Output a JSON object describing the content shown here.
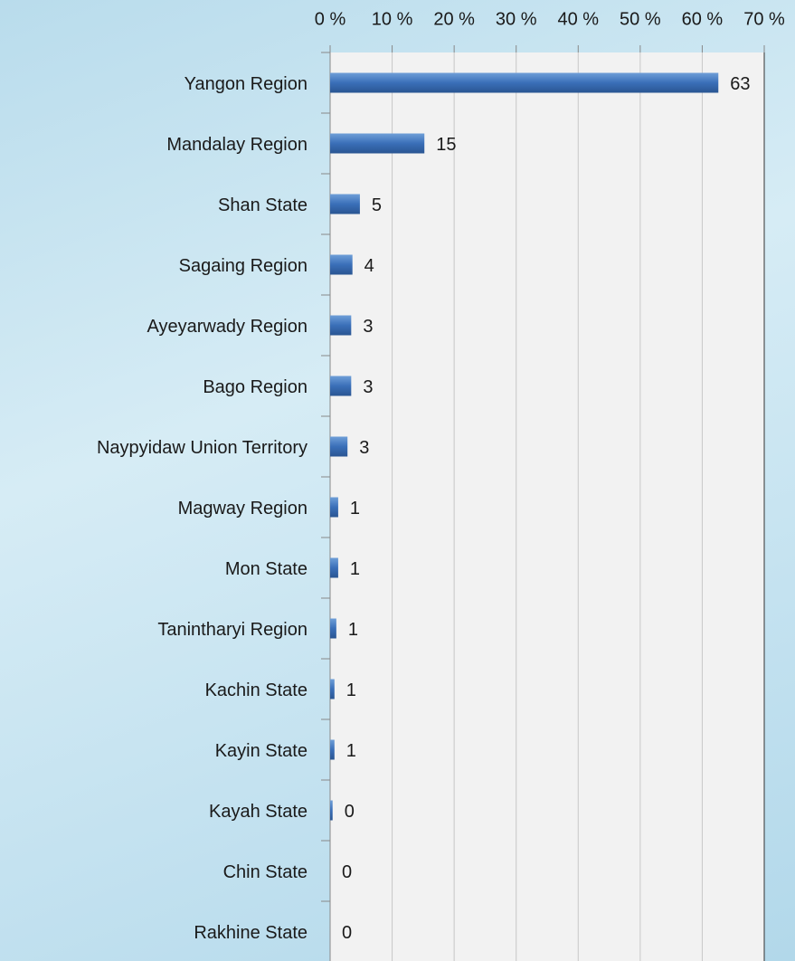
{
  "chart_data": {
    "type": "barh",
    "categories": [
      "Yangon Region",
      "Mandalay Region",
      "Shan State",
      "Sagaing Region",
      "Ayeyarwady Region",
      "Bago Region",
      "Naypyidaw Union Territory",
      "Magway Region",
      "Mon State",
      "Tanintharyi Region",
      "Kachin State",
      "Kayin State",
      "Kayah State",
      "Chin State",
      "Rakhine State"
    ],
    "values": [
      62.6,
      15.2,
      4.8,
      3.6,
      3.4,
      3.4,
      2.8,
      1.3,
      1.3,
      1.0,
      0.7,
      0.7,
      0.4,
      0,
      0
    ],
    "value_labels": [
      "63",
      "15",
      "5",
      "4",
      "3",
      "3",
      "3",
      "1",
      "1",
      "1",
      "1",
      "1",
      "0",
      "0",
      "0"
    ],
    "color": "#3a6fb8",
    "xlim": [
      0,
      70
    ],
    "xticks": [
      {
        "value": 0,
        "label": "0 %"
      },
      {
        "value": 10,
        "label": "10 %"
      },
      {
        "value": 20,
        "label": "20 %"
      },
      {
        "value": 30,
        "label": "30 %"
      },
      {
        "value": 40,
        "label": "40 %"
      },
      {
        "value": 50,
        "label": "50 %"
      },
      {
        "value": 60,
        "label": "60 %"
      },
      {
        "value": 70,
        "label": "70 %"
      }
    ],
    "grid": true
  }
}
